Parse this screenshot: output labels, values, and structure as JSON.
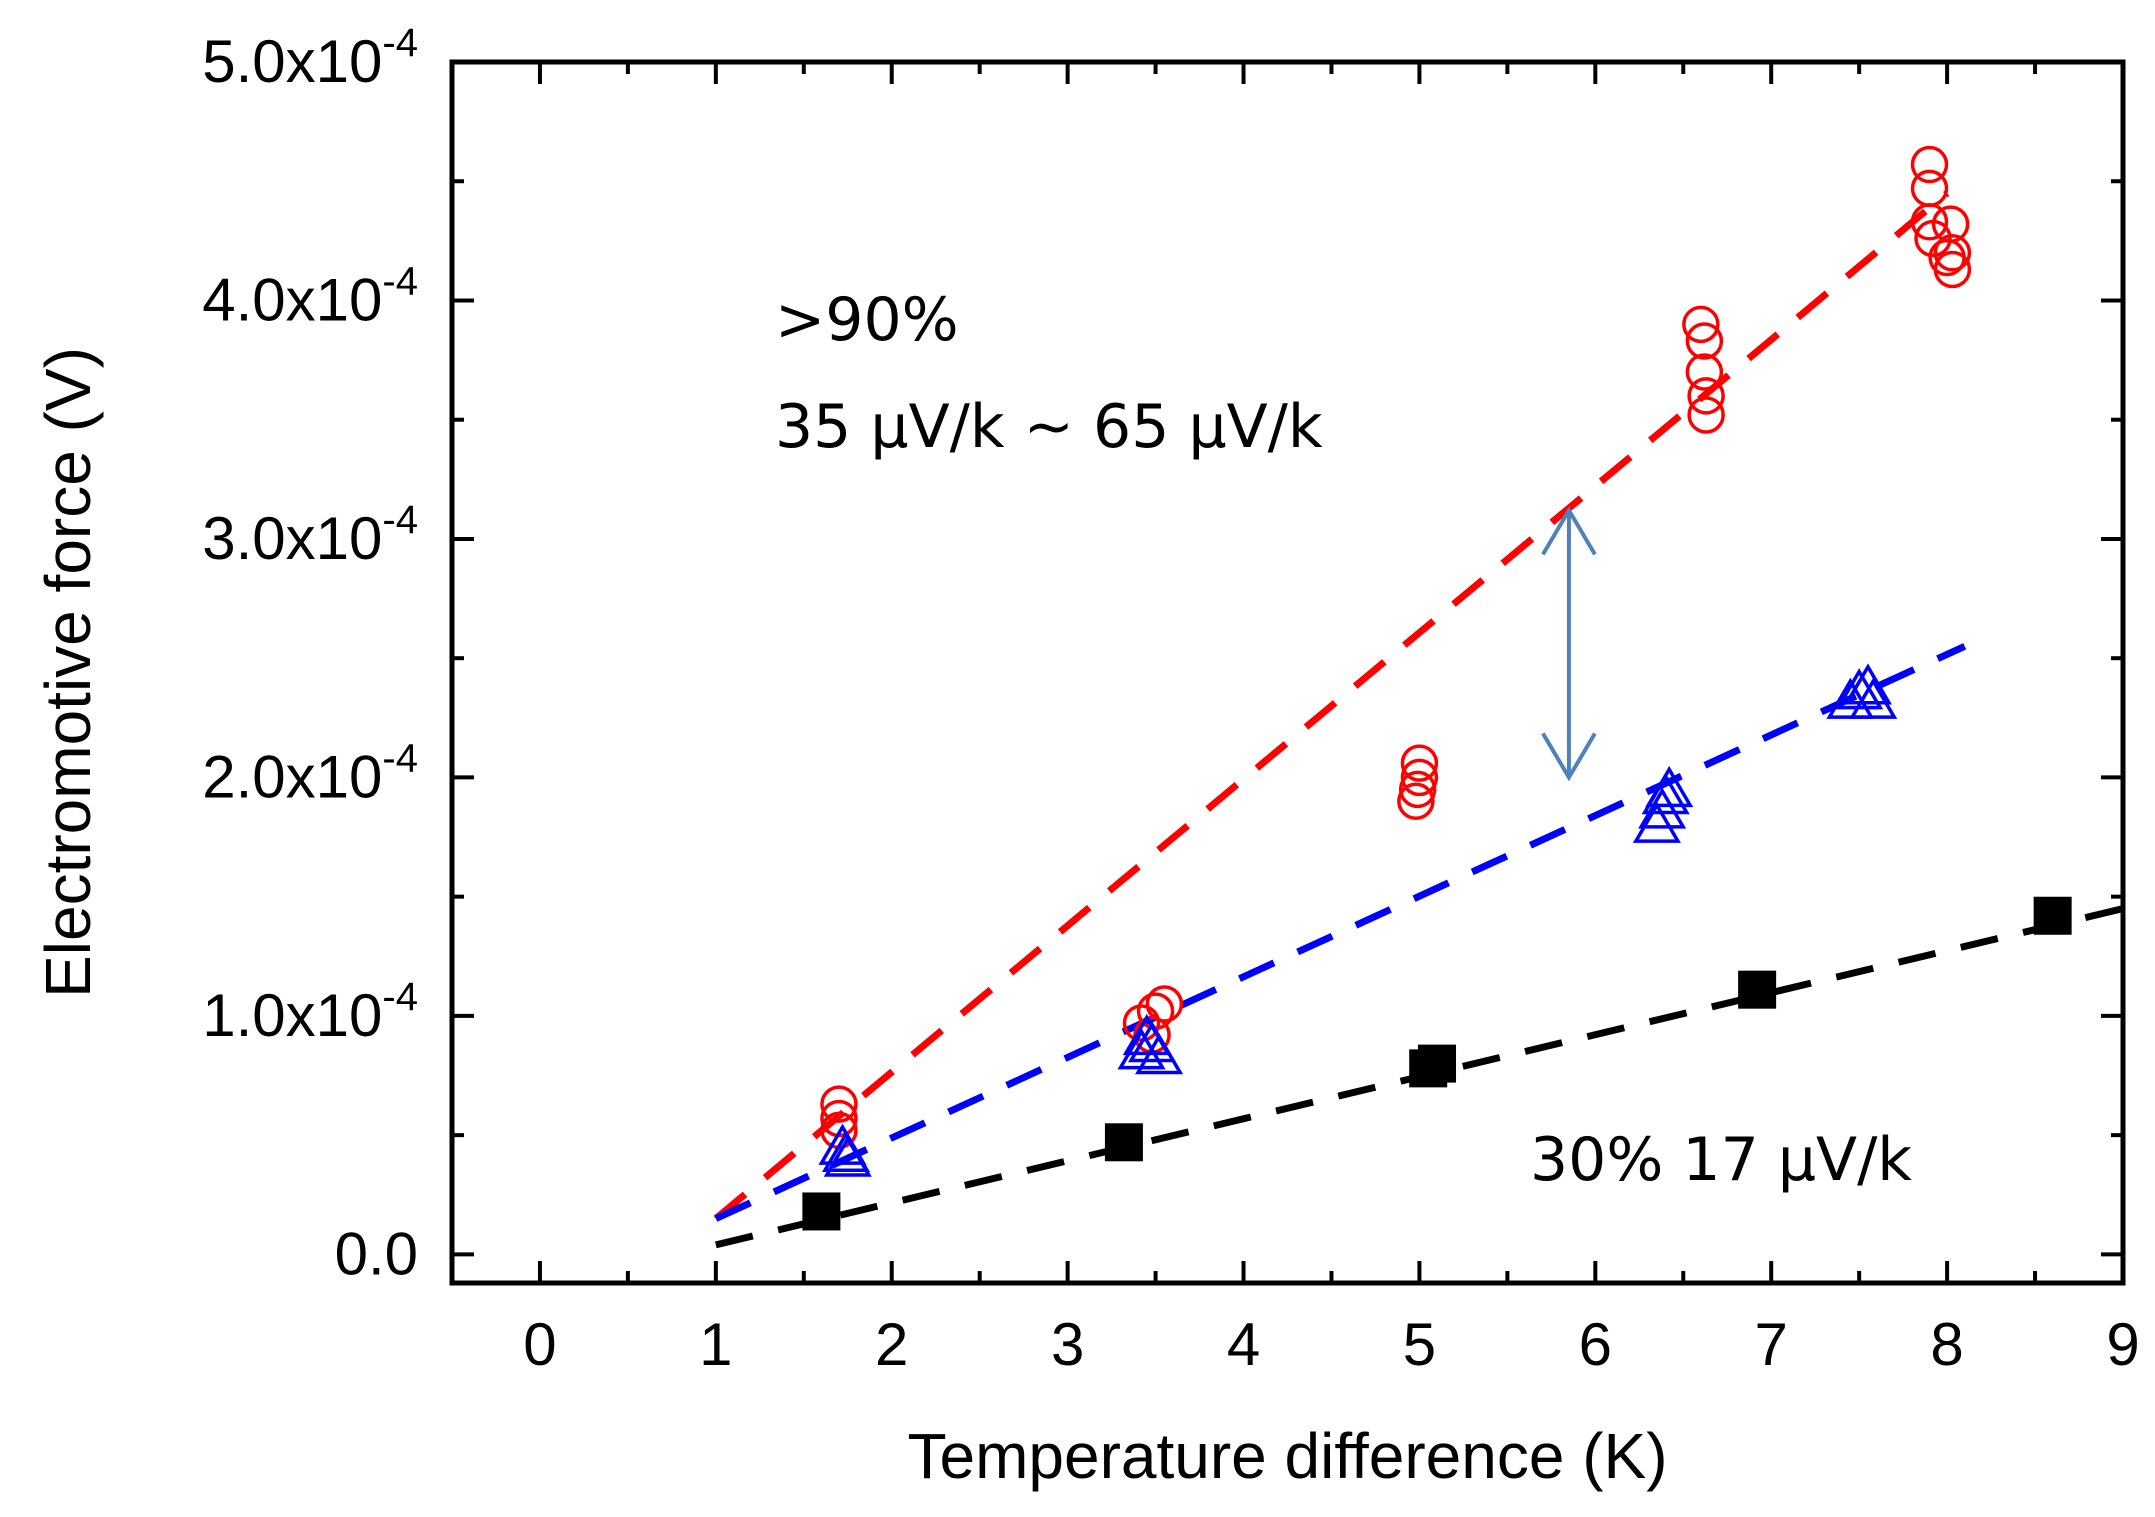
{
  "chart_data": {
    "type": "scatter",
    "title": "",
    "xlabel": "Temperature difference (K)",
    "ylabel": "Electromotive force (V)",
    "xlim": [
      -0.5,
      9
    ],
    "ylim": [
      -1.2e-05,
      0.0005
    ],
    "grid": false,
    "legend": "none",
    "x_ticks": [
      0,
      1,
      2,
      3,
      4,
      5,
      6,
      7,
      8,
      9
    ],
    "x_tick_labels": [
      "0",
      "1",
      "2",
      "3",
      "4",
      "5",
      "6",
      "7",
      "8",
      "9"
    ],
    "y_ticks": [
      {
        "value": 0.0,
        "mantissa": "0.0",
        "exponent": ""
      },
      {
        "value": 0.0001,
        "mantissa": "1.0x10",
        "exponent": "-4"
      },
      {
        "value": 0.0002,
        "mantissa": "2.0x10",
        "exponent": "-4"
      },
      {
        "value": 0.0003,
        "mantissa": "3.0x10",
        "exponent": "-4"
      },
      {
        "value": 0.0004,
        "mantissa": "4.0x10",
        "exponent": "-4"
      },
      {
        "value": 0.0005,
        "mantissa": "5.0x10",
        "exponent": "-4"
      }
    ],
    "series": [
      {
        "marker": "open-circle",
        "color": "#ff0000",
        "points": [
          [
            1.7,
            6.3e-05
          ],
          [
            1.7,
            5.7e-05
          ],
          [
            1.7,
            5.2e-05
          ],
          [
            3.42,
            9.7e-05
          ],
          [
            3.48,
            9.2e-05
          ],
          [
            3.5,
            0.000102
          ],
          [
            3.55,
            0.000105
          ],
          [
            4.98,
            0.00019
          ],
          [
            4.99,
            0.000195
          ],
          [
            5.0,
            0.0002
          ],
          [
            5.0,
            0.000206
          ],
          [
            6.6,
            0.00039
          ],
          [
            6.62,
            0.000383
          ],
          [
            6.62,
            0.00037
          ],
          [
            6.63,
            0.00036
          ],
          [
            6.63,
            0.000352
          ],
          [
            7.9,
            0.000457
          ],
          [
            7.9,
            0.000447
          ],
          [
            7.9,
            0.000433
          ],
          [
            7.92,
            0.000426
          ],
          [
            8.0,
            0.000418
          ],
          [
            8.02,
            0.000432
          ],
          [
            8.03,
            0.00042
          ],
          [
            8.03,
            0.000413
          ]
        ],
        "fit": {
          "x": [
            1.0,
            8.0
          ],
          "y": [
            1.5e-05,
            0.000445
          ]
        }
      },
      {
        "marker": "open-triangle",
        "color": "#0000ff",
        "points": [
          [
            1.72,
            4.5e-05
          ],
          [
            1.74,
            4.2e-05
          ],
          [
            1.75,
            4e-05
          ],
          [
            3.42,
            8.5e-05
          ],
          [
            3.45,
            9.1e-05
          ],
          [
            3.48,
            8.8e-05
          ],
          [
            3.52,
            8.3e-05
          ],
          [
            6.35,
            0.00018
          ],
          [
            6.38,
            0.000186
          ],
          [
            6.4,
            0.000192
          ],
          [
            6.42,
            0.000195
          ],
          [
            7.45,
            0.000232
          ],
          [
            7.5,
            0.000236
          ],
          [
            7.55,
            0.000238
          ],
          [
            7.58,
            0.000232
          ]
        ],
        "fit": {
          "x": [
            1.0,
            8.1
          ],
          "y": [
            1.5e-05,
            0.000255
          ]
        }
      },
      {
        "marker": "filled-square",
        "color": "#000000",
        "points": [
          [
            1.6,
            1.8e-05
          ],
          [
            3.32,
            4.7e-05
          ],
          [
            5.05,
            7.8e-05
          ],
          [
            5.1,
            8e-05
          ],
          [
            6.92,
            0.000111
          ],
          [
            8.6,
            0.000142
          ]
        ],
        "fit": {
          "x": [
            1.0,
            9.0
          ],
          "y": [
            4e-06,
            0.000145
          ]
        }
      }
    ],
    "annotations": {
      "line1": ">90%",
      "line2": "35 μV/k ~ 65 μV/k",
      "line3": "30% 17 μV/k"
    },
    "arrow": {
      "color": "#4f81bd",
      "x": 5.85,
      "y_top": 0.000312,
      "y_bottom": 0.0002
    }
  }
}
